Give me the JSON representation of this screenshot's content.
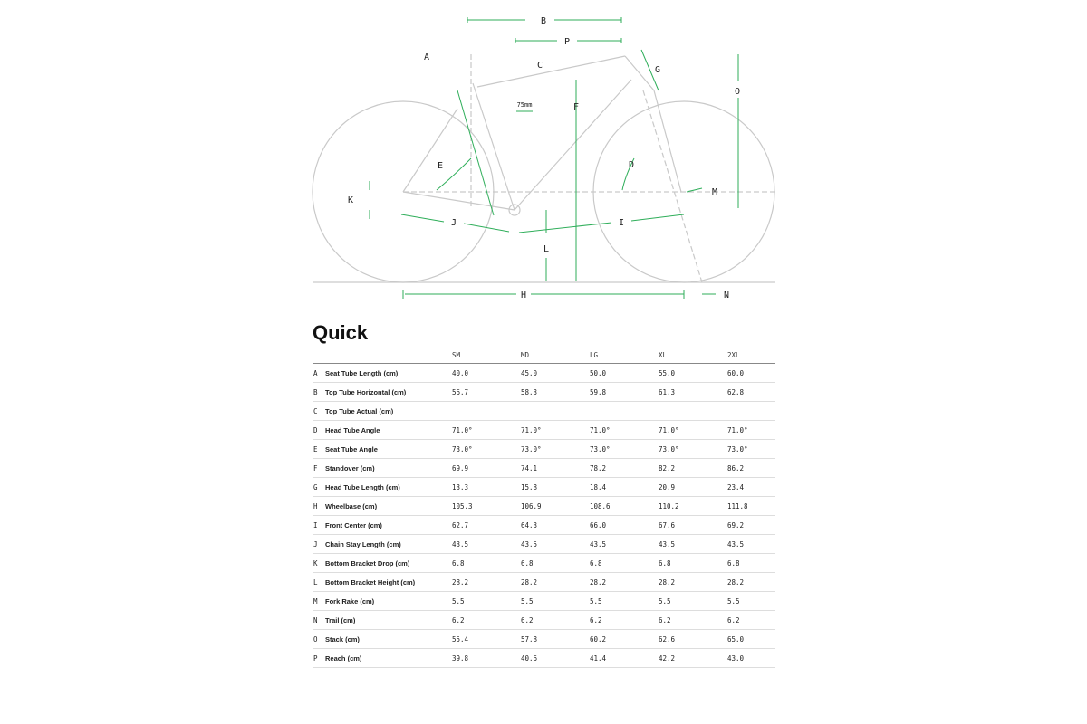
{
  "diagram": {
    "labels": {
      "A": "A",
      "B": "B",
      "C": "C",
      "D": "D",
      "E": "E",
      "F": "F",
      "G": "G",
      "H": "H",
      "I": "I",
      "J": "J",
      "K": "K",
      "L": "L",
      "M": "M",
      "N": "N",
      "O": "O",
      "P": "P"
    },
    "note_75mm": "75mm",
    "accent_color": "#2fae5a"
  },
  "title": "Quick",
  "table": {
    "columns": [
      "SM",
      "MD",
      "LG",
      "XL",
      "2XL"
    ],
    "rows": [
      {
        "key": "A",
        "name": "Seat Tube Length (cm)",
        "values": [
          "40.0",
          "45.0",
          "50.0",
          "55.0",
          "60.0"
        ]
      },
      {
        "key": "B",
        "name": "Top Tube Horizontal (cm)",
        "values": [
          "56.7",
          "58.3",
          "59.8",
          "61.3",
          "62.8"
        ]
      },
      {
        "key": "C",
        "name": "Top Tube Actual (cm)",
        "values": [
          "",
          "",
          "",
          "",
          ""
        ]
      },
      {
        "key": "D",
        "name": "Head Tube Angle",
        "values": [
          "71.0°",
          "71.0°",
          "71.0°",
          "71.0°",
          "71.0°"
        ]
      },
      {
        "key": "E",
        "name": "Seat Tube Angle",
        "values": [
          "73.0°",
          "73.0°",
          "73.0°",
          "73.0°",
          "73.0°"
        ]
      },
      {
        "key": "F",
        "name": "Standover (cm)",
        "values": [
          "69.9",
          "74.1",
          "78.2",
          "82.2",
          "86.2"
        ]
      },
      {
        "key": "G",
        "name": "Head Tube Length (cm)",
        "values": [
          "13.3",
          "15.8",
          "18.4",
          "20.9",
          "23.4"
        ]
      },
      {
        "key": "H",
        "name": "Wheelbase (cm)",
        "values": [
          "105.3",
          "106.9",
          "108.6",
          "110.2",
          "111.8"
        ]
      },
      {
        "key": "I",
        "name": "Front Center (cm)",
        "values": [
          "62.7",
          "64.3",
          "66.0",
          "67.6",
          "69.2"
        ]
      },
      {
        "key": "J",
        "name": "Chain Stay Length (cm)",
        "values": [
          "43.5",
          "43.5",
          "43.5",
          "43.5",
          "43.5"
        ]
      },
      {
        "key": "K",
        "name": "Bottom Bracket Drop (cm)",
        "values": [
          "6.8",
          "6.8",
          "6.8",
          "6.8",
          "6.8"
        ]
      },
      {
        "key": "L",
        "name": "Bottom Bracket Height (cm)",
        "values": [
          "28.2",
          "28.2",
          "28.2",
          "28.2",
          "28.2"
        ]
      },
      {
        "key": "M",
        "name": "Fork Rake (cm)",
        "values": [
          "5.5",
          "5.5",
          "5.5",
          "5.5",
          "5.5"
        ]
      },
      {
        "key": "N",
        "name": "Trail (cm)",
        "values": [
          "6.2",
          "6.2",
          "6.2",
          "6.2",
          "6.2"
        ]
      },
      {
        "key": "O",
        "name": "Stack (cm)",
        "values": [
          "55.4",
          "57.8",
          "60.2",
          "62.6",
          "65.0"
        ]
      },
      {
        "key": "P",
        "name": "Reach (cm)",
        "values": [
          "39.8",
          "40.6",
          "41.4",
          "42.2",
          "43.0"
        ]
      }
    ]
  }
}
